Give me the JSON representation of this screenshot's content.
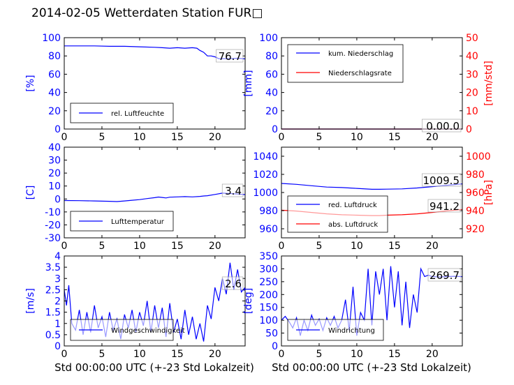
{
  "figure": {
    "title": "2014-02-05 Wetterdaten Station FUR□",
    "xlabel": "Std 00:00:00 UTC (+-23 Std Lokalzeit)"
  },
  "colors": {
    "blue": "#0000ff",
    "red": "#ff0000",
    "black": "#000000",
    "light_blue": "#8080ff"
  },
  "chart_data": [
    {
      "id": "humidity",
      "type": "line",
      "xlim": [
        0,
        24
      ],
      "ylim": [
        0,
        100
      ],
      "xticks": [
        0,
        5,
        10,
        15,
        20
      ],
      "yticks": [
        0,
        20,
        40,
        60,
        80,
        100
      ],
      "ylabel": "[%]",
      "ylabel_color": "#0000ff",
      "legend_placement": "lower-left",
      "annotation": "76.7",
      "series": [
        {
          "name": "rel. Luftfeuchte",
          "color": "#0000ff",
          "x": [
            0,
            2,
            4,
            6,
            8,
            10,
            12,
            13,
            14,
            15,
            16,
            17,
            17.6,
            18,
            18.5,
            19,
            19.5,
            20,
            20.5,
            21,
            22,
            23,
            24
          ],
          "y": [
            91,
            91,
            91,
            90.5,
            90.5,
            90,
            89.5,
            89,
            88.5,
            89,
            88.5,
            89,
            88.5,
            86,
            84,
            80,
            80,
            79,
            77,
            77,
            77,
            77.5,
            76.7
          ]
        }
      ]
    },
    {
      "id": "precipitation",
      "type": "line",
      "xlim": [
        0,
        24
      ],
      "ylim": [
        0,
        100
      ],
      "ylim_right": [
        0,
        50
      ],
      "xticks": [
        0,
        5,
        10,
        15,
        20
      ],
      "yticks": [
        0,
        20,
        40,
        60,
        80,
        100
      ],
      "yticks_right": [
        0,
        10,
        20,
        30,
        40,
        50
      ],
      "ylabel": "[mm]",
      "ylabel_color": "#0000ff",
      "ylabel_right": "[mm/std]",
      "ylabel_right_color": "#ff0000",
      "legend_placement": "upper-left",
      "annotation": "0.00.0",
      "series": [
        {
          "name": "kum. Niederschlag",
          "color": "#0000ff",
          "x": [
            0,
            24
          ],
          "y": [
            0,
            0
          ]
        },
        {
          "name": "Niederschlagsrate",
          "color": "#ff0000",
          "axis": "right",
          "x": [
            0,
            24
          ],
          "y": [
            0,
            0
          ]
        }
      ]
    },
    {
      "id": "temperature",
      "type": "line",
      "xlim": [
        0,
        24
      ],
      "ylim": [
        -30,
        40
      ],
      "xticks": [
        0,
        5,
        10,
        15,
        20
      ],
      "yticks": [
        -30,
        -20,
        -10,
        0,
        10,
        20,
        30,
        40
      ],
      "ylabel": "[C]",
      "ylabel_color": "#0000ff",
      "legend_placement": "lower-left",
      "annotation": "3.4",
      "series": [
        {
          "name": "Lufttemperatur",
          "color": "#0000ff",
          "x": [
            0,
            2,
            4,
            6,
            7,
            8,
            9,
            10,
            11,
            12,
            12.5,
            13,
            13.5,
            14,
            15,
            16,
            17,
            18,
            18.5,
            19,
            20,
            21,
            22,
            23,
            24
          ],
          "y": [
            -1.2,
            -1.3,
            -1.5,
            -1.8,
            -2,
            -1.5,
            -1,
            -0.5,
            0.3,
            1,
            1.5,
            1.2,
            0.8,
            1.4,
            1.6,
            1.8,
            1.6,
            2,
            2.3,
            2.5,
            3.5,
            4.5,
            4.2,
            3.8,
            3.4
          ]
        }
      ]
    },
    {
      "id": "pressure",
      "type": "line",
      "xlim": [
        0,
        24
      ],
      "ylim": [
        950,
        1050
      ],
      "ylim_right": [
        910,
        1010
      ],
      "xticks": [
        0,
        5,
        10,
        15,
        20
      ],
      "yticks": [
        960,
        980,
        1000,
        1020,
        1040
      ],
      "yticks_right": [
        920,
        940,
        960,
        980,
        1000
      ],
      "ylabel": "",
      "ylabel_right": "[hPa]",
      "ylabel_right_color": "#ff0000",
      "legend_placement": "lower-left",
      "annotations": [
        "1009.5",
        "941.2"
      ],
      "series": [
        {
          "name": "red. Luftdruck",
          "color": "#0000ff",
          "x": [
            0,
            2,
            4,
            6,
            8,
            10,
            12,
            13,
            14,
            16,
            18,
            20,
            22,
            24
          ],
          "y": [
            1010,
            1009,
            1007.5,
            1006,
            1005.5,
            1004.5,
            1003.5,
            1003.5,
            1003.7,
            1004,
            1005,
            1006.5,
            1008,
            1009.5
          ]
        },
        {
          "name": "abs. Luftdruck",
          "color": "#ff0000",
          "axis": "right",
          "x": [
            0,
            2,
            4,
            6,
            8,
            10,
            12,
            13,
            14,
            16,
            18,
            20,
            22,
            24
          ],
          "y": [
            940.5,
            939.5,
            938,
            936.5,
            935.5,
            935,
            934.5,
            934.5,
            935,
            935.5,
            936.5,
            938,
            939.8,
            941.2
          ]
        }
      ]
    },
    {
      "id": "windspeed",
      "type": "line",
      "xlim": [
        0,
        24
      ],
      "ylim": [
        0,
        4.0
      ],
      "xticks": [
        0,
        5,
        10,
        15,
        20
      ],
      "yticks": [
        0.0,
        0.5,
        1.0,
        1.5,
        2.0,
        2.5,
        3.0,
        3.5,
        4.0
      ],
      "ylabel": "[m/s]",
      "ylabel_color": "#0000ff",
      "legend_placement": "lower-left",
      "annotation": "2.6",
      "series": [
        {
          "name": "Windgeschwindigkeit",
          "color": "#0000ff",
          "x": [
            0,
            0.3,
            0.6,
            1,
            1.5,
            2,
            2.5,
            3,
            3.5,
            4,
            4.5,
            5,
            5.5,
            6,
            6.5,
            7,
            7.5,
            8,
            8.5,
            9,
            9.5,
            10,
            10.5,
            11,
            11.5,
            12,
            12.5,
            13,
            13.5,
            14,
            14.5,
            15,
            15.5,
            16,
            16.5,
            17,
            17.5,
            18,
            18.5,
            19,
            19.5,
            20,
            20.5,
            21,
            21.5,
            22,
            22.5,
            23,
            23.5,
            24
          ],
          "y": [
            2.5,
            1.8,
            2.7,
            1.0,
            0.7,
            1.6,
            0.5,
            1.5,
            0.6,
            1.8,
            0.8,
            1.3,
            0.4,
            1.5,
            0.7,
            1.2,
            0.3,
            1.4,
            0.8,
            1.6,
            0.6,
            1.5,
            0.9,
            2.0,
            0.6,
            1.8,
            0.8,
            1.7,
            0.4,
            1.9,
            0.6,
            1.2,
            0.3,
            1.6,
            0.5,
            1.3,
            0.3,
            1.0,
            0.2,
            1.8,
            1.2,
            2.6,
            2.0,
            3.0,
            2.3,
            3.7,
            2.5,
            3.4,
            2.4,
            2.6
          ]
        }
      ]
    },
    {
      "id": "winddirection",
      "type": "line",
      "xlim": [
        0,
        24
      ],
      "ylim": [
        0,
        350
      ],
      "xticks": [
        0,
        5,
        10,
        15,
        20
      ],
      "yticks": [
        0,
        50,
        100,
        150,
        200,
        250,
        300,
        350
      ],
      "ylabel": "[deg]",
      "ylabel_color": "#0000ff",
      "legend_placement": "lower-left",
      "annotation": "269.7",
      "series": [
        {
          "name": "Windrichtung",
          "color": "#0000ff",
          "x": [
            0,
            0.5,
            1,
            1.5,
            2,
            2.5,
            3,
            3.5,
            4,
            4.5,
            5,
            5.5,
            6,
            6.5,
            7,
            7.5,
            8,
            8.5,
            9,
            9.5,
            10,
            10.5,
            11,
            11.5,
            12,
            12.5,
            13,
            13.5,
            14,
            14.5,
            15,
            15.5,
            16,
            16.5,
            17,
            17.5,
            18,
            18.5,
            19,
            19.5,
            20,
            21,
            22,
            23,
            24
          ],
          "y": [
            100,
            115,
            95,
            70,
            110,
            40,
            100,
            60,
            120,
            80,
            105,
            60,
            110,
            80,
            115,
            70,
            100,
            180,
            60,
            230,
            40,
            130,
            100,
            300,
            80,
            290,
            200,
            300,
            100,
            310,
            150,
            290,
            80,
            250,
            70,
            200,
            130,
            300,
            270,
            275,
            270,
            268,
            270,
            271,
            269.7
          ]
        }
      ]
    }
  ]
}
